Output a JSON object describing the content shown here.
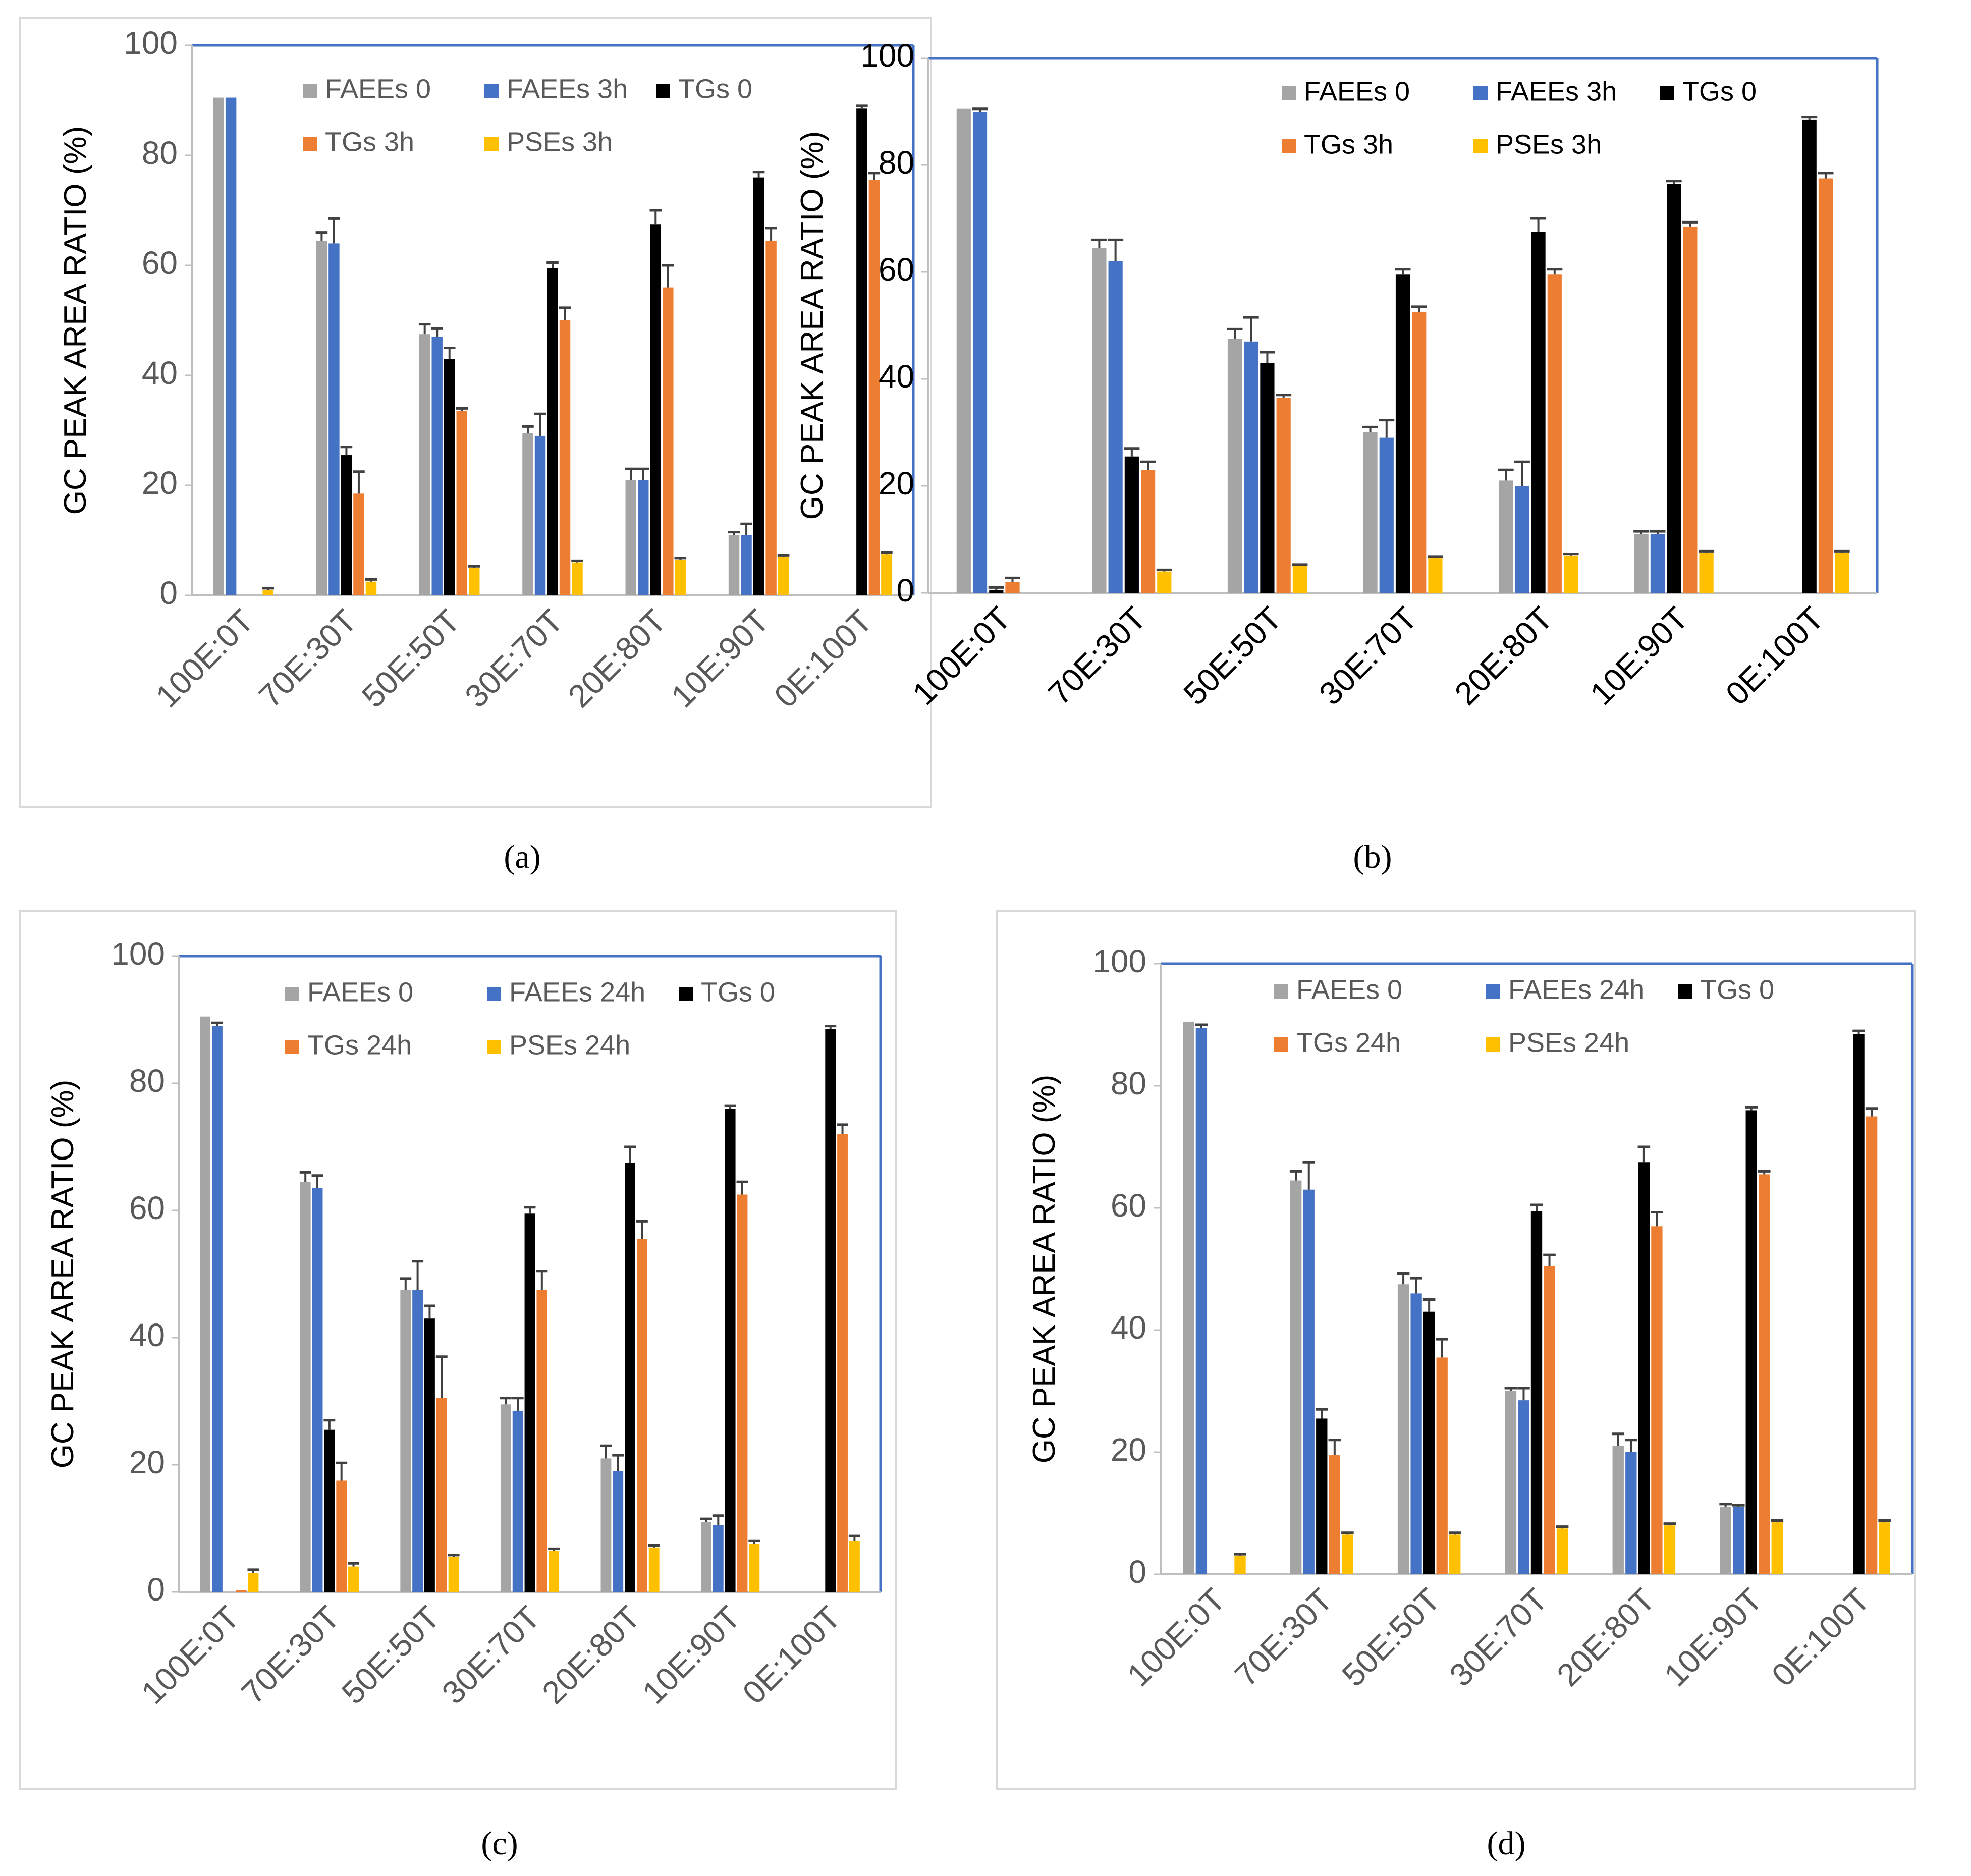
{
  "colors": {
    "FAEEs_0": "#a5a5a5",
    "FAEEs_t": "#4472c4",
    "TGs_0": "#000000",
    "TGs_t": "#ed7d31",
    "PSEs_t": "#ffc000",
    "axis_box": "#4472c4",
    "error_bar": "#404040"
  },
  "chart_data": [
    {
      "type": "bar",
      "panel": "a",
      "caption": "(a)",
      "ylabel": "GC PEAK AREA RATIO (%)",
      "xlabel": "",
      "ylim": [
        0,
        100
      ],
      "yticks": [
        "0",
        "20",
        "40",
        "60",
        "80",
        "100"
      ],
      "tick_color": "#595959",
      "categories": [
        "100E:0T",
        "70E:30T",
        "50E:50T",
        "30E:70T",
        "20E:80T",
        "10E:90T",
        "0E:100T"
      ],
      "legend": [
        "FAEEs 0",
        "FAEEs 3h",
        "TGs 0",
        "TGs 3h",
        "PSEs 3h"
      ],
      "series": [
        {
          "name": "FAEEs 0",
          "color_key": "FAEEs_0",
          "values": [
            90.5,
            64.5,
            47.5,
            29.5,
            21,
            11,
            0
          ],
          "errors": [
            0,
            1.5,
            1.8,
            1.2,
            2,
            0.5,
            0
          ]
        },
        {
          "name": "FAEEs 3h",
          "color_key": "FAEEs_t",
          "values": [
            90.5,
            64,
            47,
            29,
            21,
            11,
            0
          ],
          "errors": [
            0,
            4.5,
            1.5,
            4,
            2,
            2,
            0
          ]
        },
        {
          "name": "TGs 0",
          "color_key": "TGs_0",
          "values": [
            0,
            25.5,
            43,
            59.5,
            67.5,
            76,
            88.5
          ],
          "errors": [
            0,
            1.5,
            2,
            1,
            2.5,
            1,
            0.5
          ]
        },
        {
          "name": "TGs 3h",
          "color_key": "TGs_t",
          "values": [
            0,
            18.5,
            33.5,
            50,
            56,
            64.5,
            75.5
          ],
          "errors": [
            0,
            4,
            0.5,
            2.3,
            4,
            2.3,
            1.3
          ]
        },
        {
          "name": "PSEs 3h",
          "color_key": "PSEs_t",
          "values": [
            1,
            2.5,
            5,
            6,
            6.5,
            7,
            7.5
          ],
          "errors": [
            0.3,
            0.4,
            0.3,
            0.3,
            0.3,
            0.3,
            0.3
          ]
        }
      ]
    },
    {
      "type": "bar",
      "panel": "b",
      "caption": "(b)",
      "ylabel": "GC PEAK AREA RATIO (%)",
      "xlabel": "",
      "ylim": [
        0,
        100
      ],
      "yticks": [
        "0",
        "20",
        "40",
        "60",
        "80",
        "100"
      ],
      "tick_color": "#000000",
      "categories": [
        "100E:0T",
        "70E:30T",
        "50E:50T",
        "30E:70T",
        "20E:80T",
        "10E:90T",
        "0E:100T"
      ],
      "legend": [
        "FAEEs 0",
        "FAEEs 3h",
        "TGs 0",
        "TGs 3h",
        "PSEs 3h"
      ],
      "series": [
        {
          "name": "FAEEs 0",
          "color_key": "FAEEs_0",
          "values": [
            90.5,
            64.5,
            47.5,
            30,
            21,
            11,
            0
          ],
          "errors": [
            0,
            1.5,
            1.8,
            1,
            2,
            0.5,
            0
          ]
        },
        {
          "name": "FAEEs 3h",
          "color_key": "FAEEs_t",
          "values": [
            90,
            62,
            47,
            29,
            20,
            11,
            0
          ],
          "errors": [
            0.5,
            4,
            4.5,
            3.3,
            4.5,
            0.5,
            0
          ]
        },
        {
          "name": "TGs 0",
          "color_key": "TGs_0",
          "values": [
            0.5,
            25.5,
            43,
            59.5,
            67.5,
            76.5,
            88.5
          ],
          "errors": [
            0.5,
            1.5,
            2,
            1,
            2.5,
            0.5,
            0.5
          ]
        },
        {
          "name": "TGs 3h",
          "color_key": "TGs_t",
          "values": [
            2,
            23,
            36.5,
            52.5,
            59.5,
            68.5,
            77.5
          ],
          "errors": [
            0.8,
            1.5,
            0.5,
            1,
            1,
            0.8,
            1
          ]
        },
        {
          "name": "PSEs 3h",
          "color_key": "PSEs_t",
          "values": [
            0,
            4,
            5,
            6.5,
            7,
            7.5,
            7.5
          ],
          "errors": [
            0,
            0.3,
            0.3,
            0.3,
            0.3,
            0.3,
            0.3
          ]
        }
      ]
    },
    {
      "type": "bar",
      "panel": "c",
      "caption": "(c)",
      "ylabel": "GC PEAK AREA RATIO (%)",
      "xlabel": "",
      "ylim": [
        0,
        100
      ],
      "yticks": [
        "0",
        "20",
        "40",
        "60",
        "80",
        "100"
      ],
      "tick_color": "#595959",
      "categories": [
        "100E:0T",
        "70E:30T",
        "50E:50T",
        "30E:70T",
        "20E:80T",
        "10E:90T",
        "0E:100T"
      ],
      "legend": [
        "FAEEs 0",
        "FAEEs 24h",
        "TGs 0",
        "TGs 24h",
        "PSEs 24h"
      ],
      "series": [
        {
          "name": "FAEEs 0",
          "color_key": "FAEEs_0",
          "values": [
            90.5,
            64.5,
            47.5,
            29.5,
            21,
            11,
            0
          ],
          "errors": [
            0,
            1.5,
            1.8,
            1,
            2,
            0.5,
            0
          ]
        },
        {
          "name": "FAEEs 24h",
          "color_key": "FAEEs_t",
          "values": [
            89,
            63.5,
            47.5,
            28.5,
            19,
            10.5,
            0
          ],
          "errors": [
            0.5,
            2,
            4.5,
            2,
            2.5,
            1.5,
            0
          ]
        },
        {
          "name": "TGs 0",
          "color_key": "TGs_0",
          "values": [
            0,
            25.5,
            43,
            59.5,
            67.5,
            76,
            88.5
          ],
          "errors": [
            0,
            1.5,
            2,
            1,
            2.5,
            0.5,
            0.5
          ]
        },
        {
          "name": "TGs 24h",
          "color_key": "TGs_t",
          "values": [
            0.3,
            17.5,
            30.5,
            47.5,
            55.5,
            62.5,
            72
          ],
          "errors": [
            0,
            2.8,
            6.5,
            3,
            2.8,
            2,
            1.5
          ]
        },
        {
          "name": "PSEs 24h",
          "color_key": "PSEs_t",
          "values": [
            3,
            4,
            5.5,
            6.5,
            7,
            7.5,
            8
          ],
          "errors": [
            0.5,
            0.5,
            0.3,
            0.3,
            0.3,
            0.5,
            0.8
          ]
        }
      ]
    },
    {
      "type": "bar",
      "panel": "d",
      "caption": "(d)",
      "ylabel": "GC PEAK AREA RATIO (%)",
      "xlabel": "",
      "ylim": [
        0,
        100
      ],
      "yticks": [
        "0",
        "20",
        "40",
        "60",
        "80",
        "100"
      ],
      "tick_color": "#595959",
      "categories": [
        "100E:0T",
        "70E:30T",
        "50E:50T",
        "30E:70T",
        "20E:80T",
        "10E:90T",
        "0E:100T"
      ],
      "legend": [
        "FAEEs 0",
        "FAEEs 24h",
        "TGs 0",
        "TGs 24h",
        "PSEs 24h"
      ],
      "series": [
        {
          "name": "FAEEs 0",
          "color_key": "FAEEs_0",
          "values": [
            90.5,
            64.5,
            47.5,
            30,
            21,
            11,
            0
          ],
          "errors": [
            0,
            1.5,
            1.8,
            0.5,
            2,
            0.5,
            0
          ]
        },
        {
          "name": "FAEEs 24h",
          "color_key": "FAEEs_t",
          "values": [
            89.5,
            63,
            46,
            28.5,
            20,
            11,
            0
          ],
          "errors": [
            0.5,
            4.5,
            2.5,
            2,
            2,
            0.3,
            0
          ]
        },
        {
          "name": "TGs 0",
          "color_key": "TGs_0",
          "values": [
            0,
            25.5,
            43,
            59.5,
            67.5,
            76,
            88.5
          ],
          "errors": [
            0,
            1.5,
            2,
            1,
            2.5,
            0.5,
            0.5
          ]
        },
        {
          "name": "TGs 24h",
          "color_key": "TGs_t",
          "values": [
            0,
            19.5,
            35.5,
            50.5,
            57,
            65.5,
            75
          ],
          "errors": [
            0,
            2.5,
            3,
            1.8,
            2.3,
            0.5,
            1.3
          ]
        },
        {
          "name": "PSEs 24h",
          "color_key": "PSEs_t",
          "values": [
            3,
            6.5,
            6.5,
            7.5,
            8,
            8.5,
            8.5
          ],
          "errors": [
            0.3,
            0.3,
            0.3,
            0.3,
            0.3,
            0.3,
            0.3
          ]
        }
      ]
    }
  ]
}
